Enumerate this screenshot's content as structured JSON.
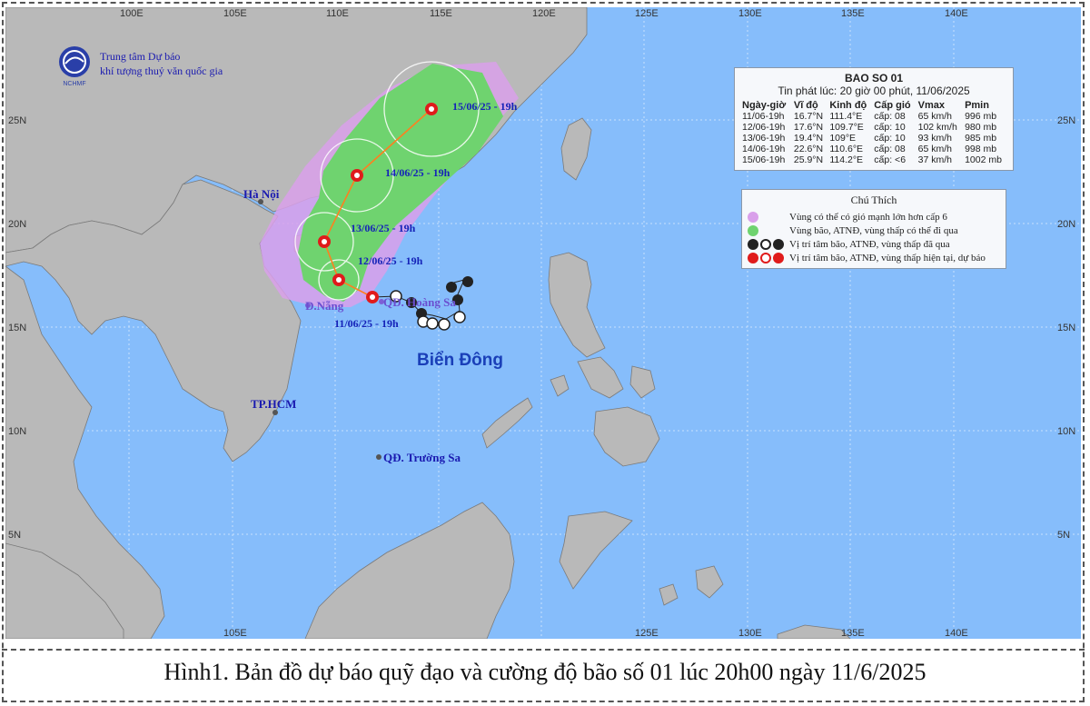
{
  "agency": {
    "line1": "Trung tâm Dự báo",
    "line2": "khí tượng thuỷ văn quốc gia",
    "logo_text": "NCHMF"
  },
  "map": {
    "lon_ticks_top": [
      "100E",
      "105E",
      "110E",
      "115E",
      "120E",
      "125E",
      "130E",
      "135E",
      "140E"
    ],
    "lon_ticks_bottom": [
      "105E",
      "125E",
      "130E",
      "135E",
      "140E"
    ],
    "lat_ticks": [
      "25N",
      "20N",
      "15N",
      "10N",
      "5N"
    ],
    "sea_label": "Biển Đông",
    "places": [
      "Hà Nội",
      "Đ.Nẵng",
      "QĐ. Hoàng Sa",
      "TP.HCM",
      "QĐ. Trường Sa"
    ],
    "track_labels": [
      "15/06/25 - 19h",
      "14/06/25 - 19h",
      "13/06/25 - 19h",
      "12/06/25 - 19h",
      "11/06/25 - 19h"
    ],
    "colors": {
      "sea": "#86bdfb",
      "land": "#b9b9b9",
      "green_zone": "#6fd36f",
      "purple_zone": "#d9a0ea",
      "storm_red": "#e01b1b"
    }
  },
  "info": {
    "title": "BAO SO 01",
    "subtitle": "Tin phát lúc: 20 giờ 00 phút, 11/06/2025",
    "headers": [
      "Ngày-giờ",
      "Vĩ độ",
      "Kinh độ",
      "Cấp gió",
      "Vmax",
      "Pmin"
    ],
    "rows": [
      [
        "11/06-19h",
        "16.7°N",
        "111.4°E",
        "cấp: 08",
        "65 km/h",
        "996 mb"
      ],
      [
        "12/06-19h",
        "17.6°N",
        "109.7°E",
        "cấp: 10",
        "102 km/h",
        "980 mb"
      ],
      [
        "13/06-19h",
        "19.4°N",
        "109°E",
        "cấp: 10",
        "93 km/h",
        "985 mb"
      ],
      [
        "14/06-19h",
        "22.6°N",
        "110.6°E",
        "cấp: 08",
        "65 km/h",
        "998 mb"
      ],
      [
        "15/06-19h",
        "25.9°N",
        "114.2°E",
        "cấp: <6",
        "37 km/h",
        "1002 mb"
      ]
    ]
  },
  "legend": {
    "title": "Chú Thích",
    "items": [
      "Vùng có thể có gió mạnh lớn hơn cấp 6",
      "Vùng bão, ATNĐ, vùng thấp có thể đi qua",
      "Vị trí tâm bão, ATNĐ, vùng thấp đã qua",
      "Vị trí tâm bão, ATNĐ, vùng thấp hiện tại, dự báo"
    ]
  },
  "caption": "Hình1. Bản đồ dự báo quỹ đạo và cường độ bão số 01 lúc 20h00 ngày 11/6/2025"
}
